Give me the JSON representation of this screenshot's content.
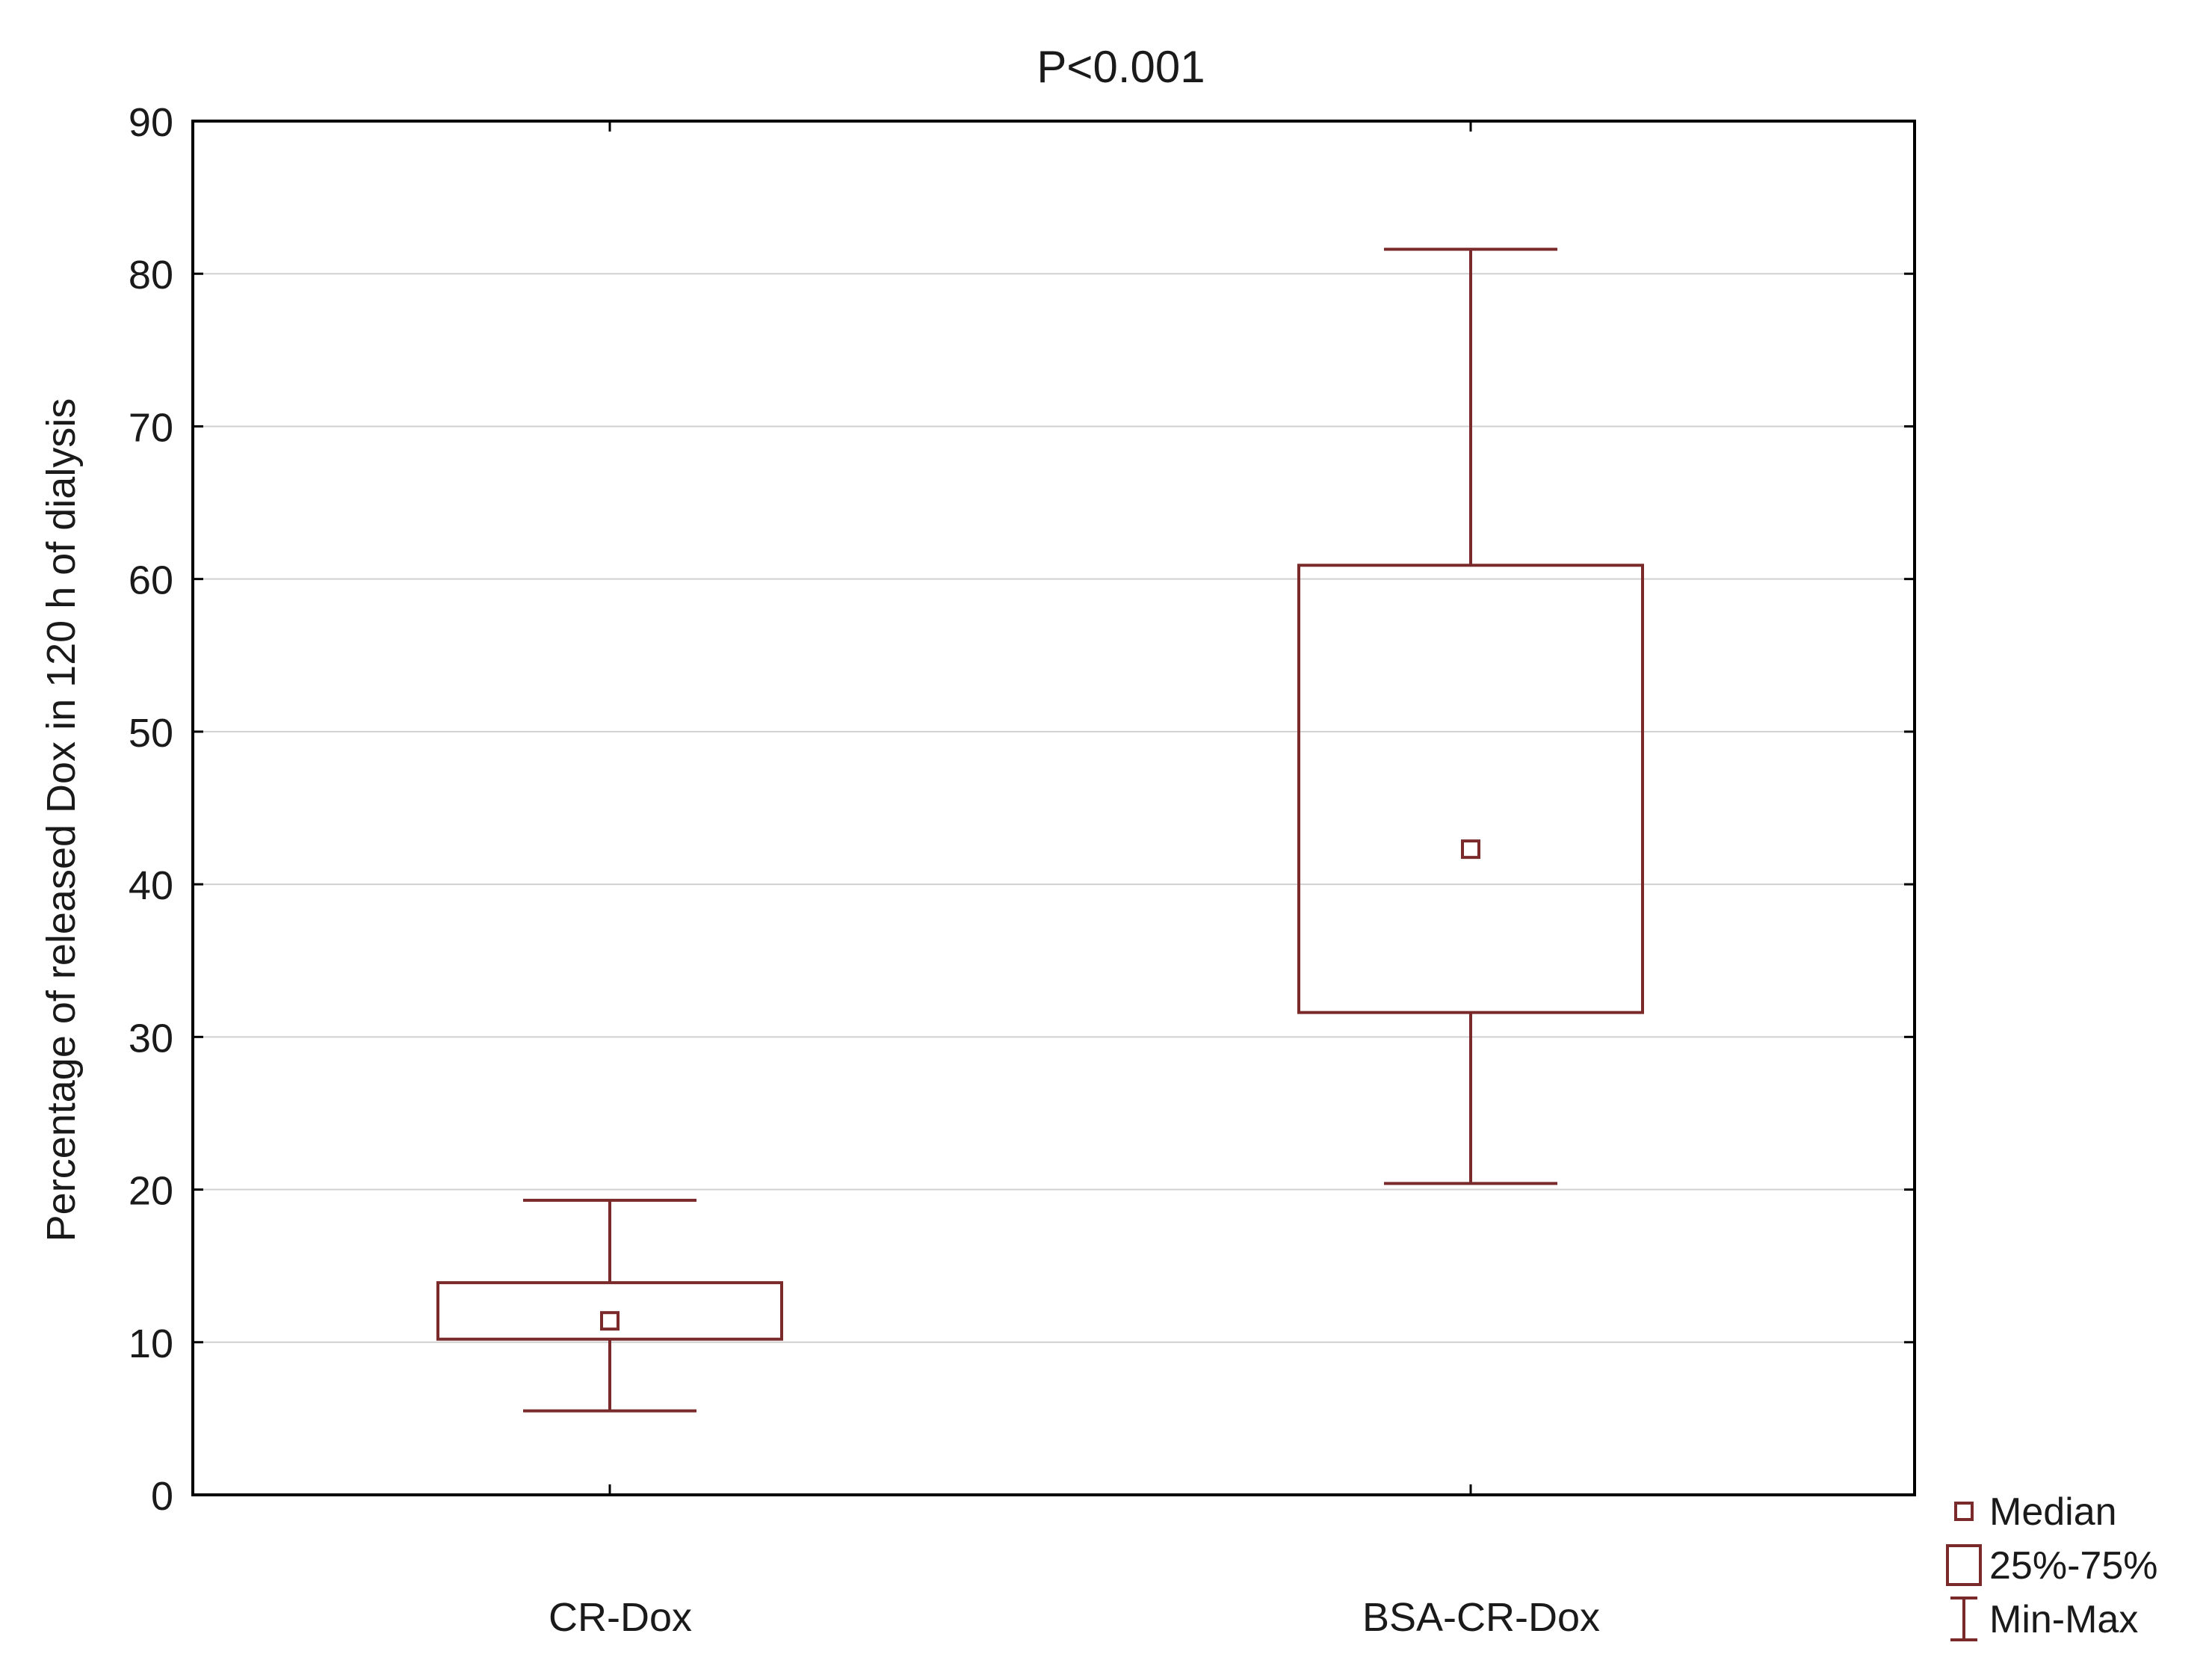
{
  "chart_data": {
    "type": "boxplot",
    "title": "P<0.001",
    "xlabel": "",
    "ylabel": "Percentage of released Dox in 120 h of dialysis",
    "ylim": [
      0,
      90
    ],
    "yticks": [
      0,
      10,
      20,
      30,
      40,
      50,
      60,
      70,
      80,
      90
    ],
    "grid": true,
    "legend_position": "bottom-right, outside plot",
    "colors": {
      "box": "#7a2a2a",
      "grid": "#d0d0d0",
      "frame": "#000000",
      "text": "#1a1a1a"
    },
    "categories": [
      "CR-Dox",
      "BSA-CR-Dox"
    ],
    "boxes": [
      {
        "category": "CR-Dox",
        "min": 5.5,
        "q1": 10.2,
        "median": 11.4,
        "q3": 13.9,
        "max": 19.3
      },
      {
        "category": "BSA-CR-Dox",
        "min": 20.4,
        "q1": 31.6,
        "median": 42.3,
        "q3": 60.9,
        "max": 81.6
      }
    ],
    "legend": [
      {
        "symbol": "median",
        "label": "Median"
      },
      {
        "symbol": "box",
        "label": "25%-75%"
      },
      {
        "symbol": "whisker",
        "label": "Min-Max"
      }
    ]
  }
}
